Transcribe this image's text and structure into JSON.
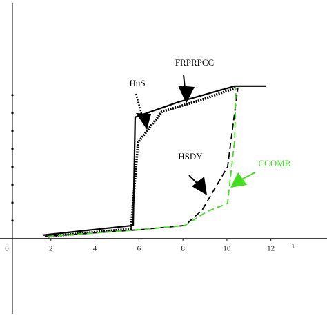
{
  "chart_data": {
    "type": "line",
    "xlabel": "τ",
    "xlim": [
      0,
      14.55
    ],
    "xticks": [
      0,
      2,
      4,
      6,
      8,
      10,
      12
    ],
    "ylim": [
      -4.2,
      13.3
    ],
    "yticks": [
      1,
      2,
      3,
      4,
      5,
      6,
      7,
      8
    ],
    "series": [
      {
        "name": "HuS",
        "color": "#000000",
        "dash": "solid",
        "x": [
          1.63,
          5.74,
          5.83,
          7.77,
          10.35,
          11.76
        ],
        "values": [
          0.19,
          0.73,
          6.77,
          7.6,
          8.5,
          8.5
        ]
      },
      {
        "name": "FRPRPCC",
        "color": "#000000",
        "dash": "dotted",
        "x": [
          1.88,
          5.64,
          5.96,
          7.05,
          8.84,
          10.44
        ],
        "values": [
          0.12,
          0.54,
          5.35,
          7.08,
          7.73,
          8.42
        ]
      },
      {
        "name": "HSDY",
        "color": "#000000",
        "dash": "dashed",
        "x": [
          1.72,
          6.11,
          8.09,
          8.87,
          10.03,
          10.5
        ],
        "values": [
          0.12,
          0.5,
          0.73,
          1.58,
          4,
          8.42
        ]
      },
      {
        "name": "CCOMB",
        "color": "#44dd22",
        "dash": "dashed",
        "x": [
          1.88,
          6.11,
          8.09,
          9.09,
          10.03,
          10.35,
          10.41
        ],
        "values": [
          0.12,
          0.5,
          0.73,
          1.5,
          1.96,
          5.46,
          8.42
        ]
      }
    ]
  }
}
